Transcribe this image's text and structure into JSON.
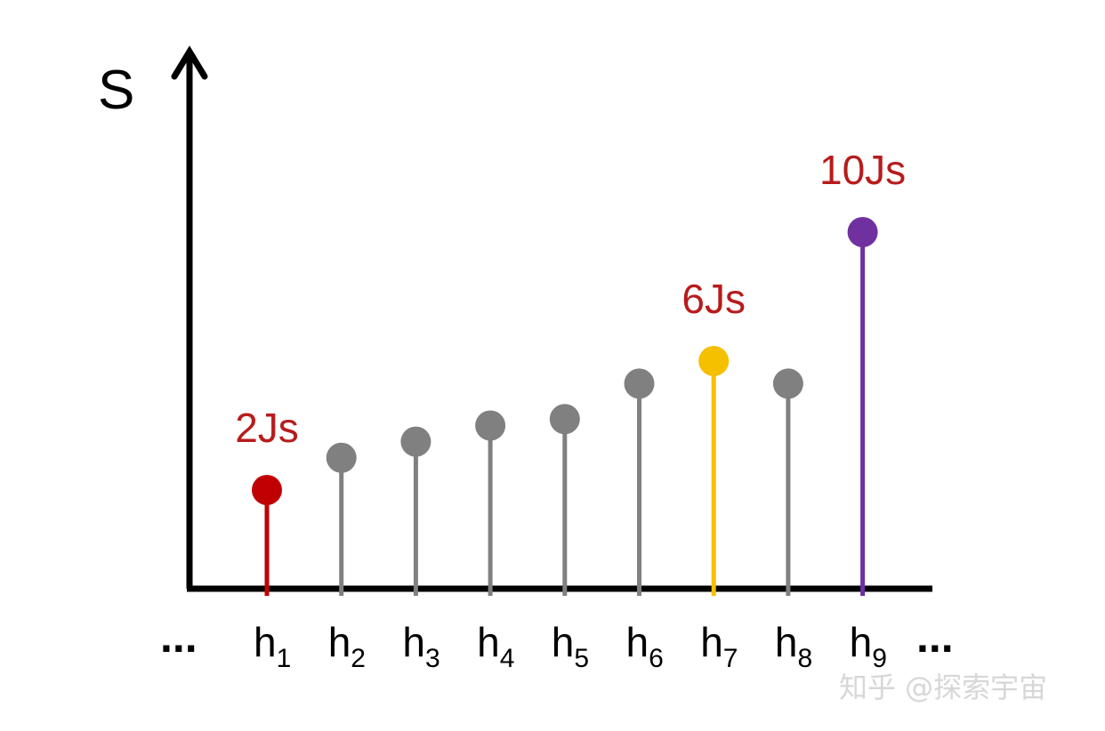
{
  "chart_data": {
    "type": "stem",
    "ylabel": "S",
    "ellipsis_left": "...",
    "ellipsis_right": "...",
    "points": [
      {
        "base": "h",
        "sub": "1",
        "value": 2,
        "color": "#c00000",
        "label": "2Js"
      },
      {
        "base": "h",
        "sub": "2",
        "value": 3,
        "color": "#808080",
        "label": ""
      },
      {
        "base": "h",
        "sub": "3",
        "value": 3.5,
        "color": "#808080",
        "label": ""
      },
      {
        "base": "h",
        "sub": "4",
        "value": 4,
        "color": "#808080",
        "label": ""
      },
      {
        "base": "h",
        "sub": "5",
        "value": 4.2,
        "color": "#808080",
        "label": ""
      },
      {
        "base": "h",
        "sub": "6",
        "value": 5.3,
        "color": "#808080",
        "label": ""
      },
      {
        "base": "h",
        "sub": "7",
        "value": 6,
        "color": "#f5c000",
        "label": "6Js"
      },
      {
        "base": "h",
        "sub": "8",
        "value": 5.3,
        "color": "#808080",
        "label": ""
      },
      {
        "base": "h",
        "sub": "9",
        "value": 10,
        "color": "#7030a0",
        "label": "10Js"
      }
    ],
    "ylim": [
      0,
      12
    ],
    "grid": false,
    "legend": "none"
  },
  "colors": {
    "axis": "#000000",
    "label_text": "#b71c1c",
    "watermark": "#d7d7d7"
  },
  "watermark": {
    "text": "知乎 @探索宇宙"
  }
}
